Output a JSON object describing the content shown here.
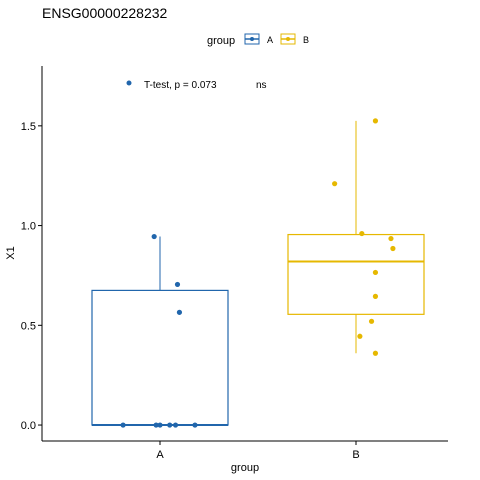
{
  "chart_data": {
    "type": "box",
    "title": "ENSG00000228232",
    "xlabel": "group",
    "ylabel": "X1",
    "categories": [
      "A",
      "B"
    ],
    "ylim": [
      -0.08,
      1.8
    ],
    "yticks": [
      0.0,
      0.5,
      1.0,
      1.5
    ],
    "ytick_labels": [
      "0.0",
      "0.5",
      "1.0",
      "1.5"
    ],
    "legend": {
      "title": "group",
      "position": "top",
      "entries": [
        "A",
        "B"
      ]
    },
    "colors": {
      "A": "#2166ac",
      "B": "#e6b800"
    },
    "series": [
      {
        "name": "A",
        "box": {
          "q1": 0.0,
          "median": 0.0,
          "q3": 0.675,
          "whisker_low": 0.0,
          "whisker_high": 0.945
        },
        "points": [
          {
            "jitter": -0.19,
            "y": 0.0
          },
          {
            "jitter": -0.02,
            "y": 0.0
          },
          {
            "jitter": 0.0,
            "y": 0.0
          },
          {
            "jitter": 0.05,
            "y": 0.0
          },
          {
            "jitter": 0.08,
            "y": 0.0
          },
          {
            "jitter": 0.18,
            "y": 0.0
          },
          {
            "jitter": -0.03,
            "y": 0.945
          },
          {
            "jitter": 0.09,
            "y": 0.705
          },
          {
            "jitter": 0.1,
            "y": 0.565
          }
        ]
      },
      {
        "name": "B",
        "box": {
          "q1": 0.555,
          "median": 0.82,
          "q3": 0.955,
          "whisker_low": 0.36,
          "whisker_high": 1.525
        },
        "points": [
          {
            "jitter": 0.1,
            "y": 1.525
          },
          {
            "jitter": -0.11,
            "y": 1.21
          },
          {
            "jitter": 0.03,
            "y": 0.96
          },
          {
            "jitter": 0.18,
            "y": 0.935
          },
          {
            "jitter": 0.19,
            "y": 0.885
          },
          {
            "jitter": 0.1,
            "y": 0.765
          },
          {
            "jitter": 0.1,
            "y": 0.645
          },
          {
            "jitter": 0.08,
            "y": 0.52
          },
          {
            "jitter": 0.02,
            "y": 0.445
          },
          {
            "jitter": 0.1,
            "y": 0.36
          }
        ]
      }
    ],
    "annotations": {
      "test_label": "T-test, p = 0.073",
      "significance": "ns",
      "marker_color": "#2166ac"
    }
  }
}
